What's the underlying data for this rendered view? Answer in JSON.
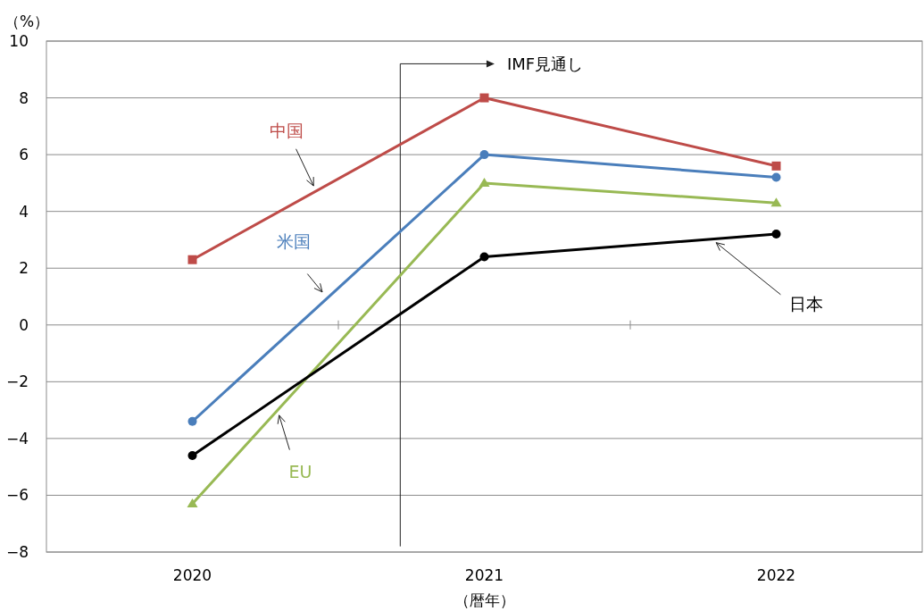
{
  "chart_data": {
    "type": "line",
    "ylabel": "（%）",
    "xlabel": "（暦年）",
    "categories": [
      "2020",
      "2021",
      "2022"
    ],
    "series": [
      {
        "name": "中国",
        "color": "#be4b48",
        "marker": "square",
        "values": [
          2.3,
          8.0,
          5.6
        ]
      },
      {
        "name": "米国",
        "color": "#4a7ebb",
        "marker": "circle",
        "values": [
          -3.4,
          6.0,
          5.2
        ]
      },
      {
        "name": "EU",
        "color": "#98b954",
        "marker": "triangle",
        "values": [
          -6.3,
          5.0,
          4.3
        ]
      },
      {
        "name": "日本",
        "color": "#000000",
        "marker": "circle",
        "values": [
          -4.6,
          2.4,
          3.2
        ]
      }
    ],
    "annotations": [
      "IMF見通し"
    ],
    "ylim": [
      -8,
      10
    ],
    "yticks": [
      -8,
      -6,
      -4,
      -2,
      0,
      2,
      4,
      6,
      8,
      10
    ],
    "grid": "y",
    "legend": false
  }
}
